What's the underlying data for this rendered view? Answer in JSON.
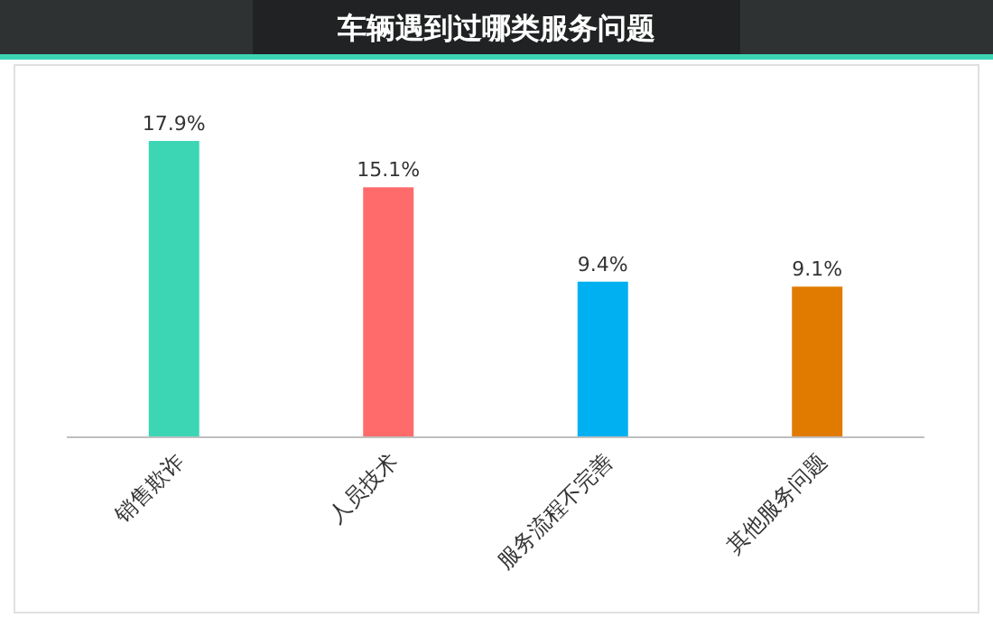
{
  "chart_data": {
    "type": "bar",
    "title": "车辆遇到过哪类服务问题",
    "categories": [
      "销售欺诈",
      "人员技术",
      "服务流程不完善",
      "其他服务问题"
    ],
    "values": [
      17.9,
      15.1,
      9.4,
      9.1
    ],
    "colors": [
      "#3dd6b5",
      "#ff6b6b",
      "#00b0f0",
      "#e07b00"
    ],
    "value_labels": [
      "17.9%",
      "15.1%",
      "9.4%",
      "9.1%"
    ]
  }
}
